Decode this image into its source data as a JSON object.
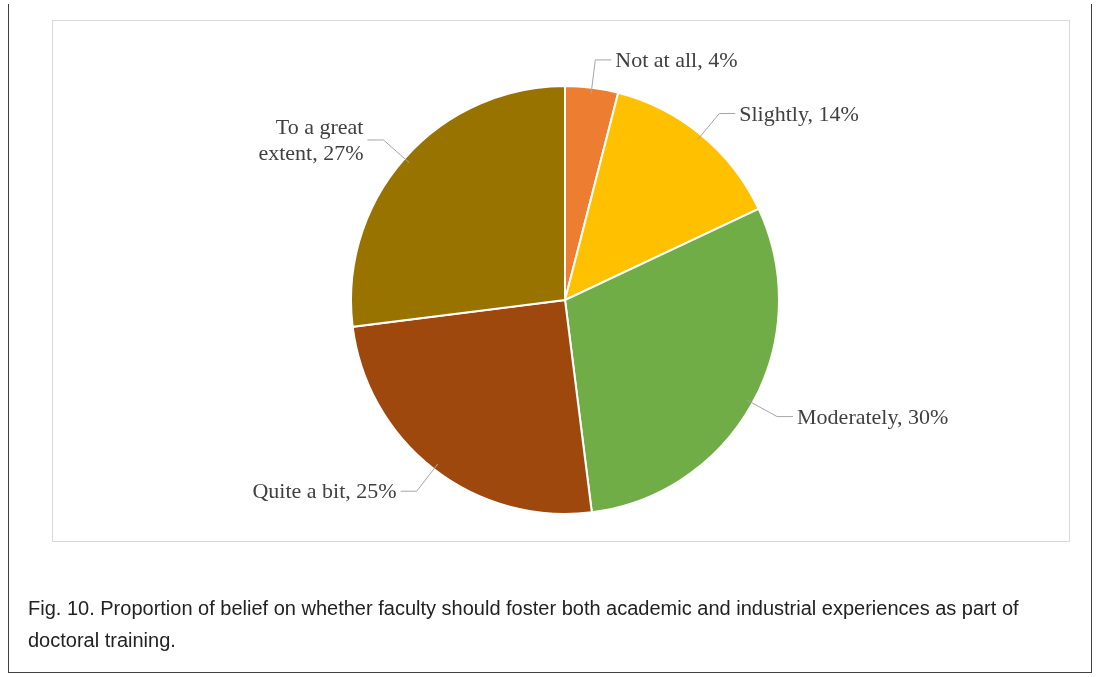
{
  "chart_data": {
    "type": "pie",
    "categories": [
      "Not at all",
      "Slightly",
      "Moderately",
      "Quite a bit",
      "To a great extent"
    ],
    "values": [
      4,
      14,
      30,
      25,
      27
    ],
    "value_labels": [
      "4%",
      "14%",
      "30%",
      "25%",
      "27%"
    ],
    "colors": [
      "#ed7d31",
      "#ffc000",
      "#70ad47",
      "#9e480e",
      "#997300"
    ],
    "legend": false,
    "annotations": [
      "Fig. 10. Proportion of belief on whether faculty should foster both academic and industrial experiences as part of doctoral training."
    ]
  }
}
